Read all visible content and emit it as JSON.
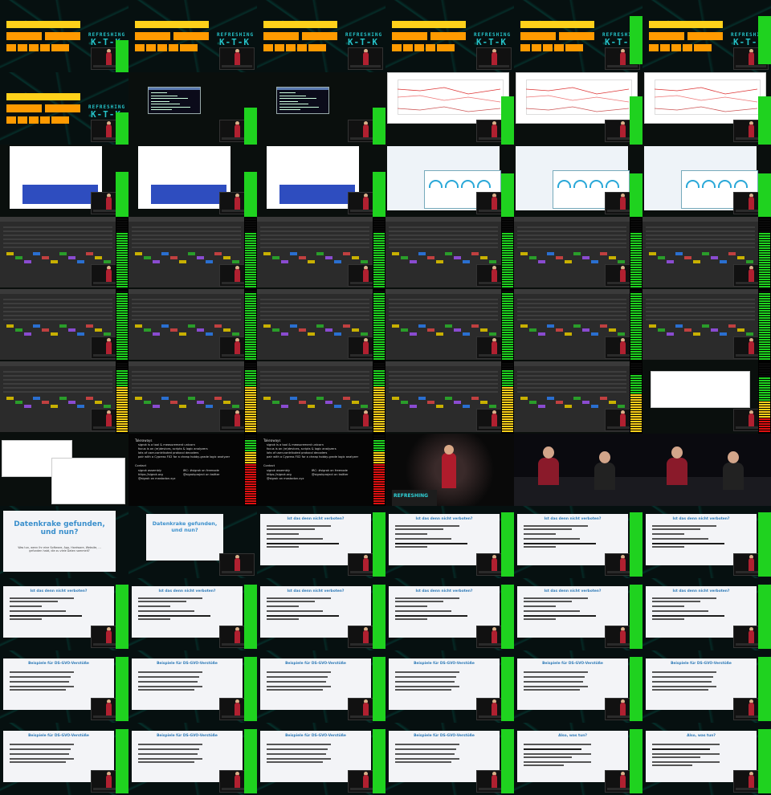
{
  "grid": {
    "columns": 6,
    "rows": 11,
    "thumb_count": 66
  },
  "logo": {
    "line1": "REFRESHING",
    "line2": "K-T-K",
    "line3": "MEMORIES"
  },
  "stage_banner": "REFRESHING",
  "text_slide": {
    "heading": "Takeaways",
    "lines": [
      "sigrok is a tool & measurement unicorn",
      "focus is on (re)devices, scripts & logic analyzers",
      "lots of user-contributed protocol decoders",
      "pair with a Cypress FX2 for a cheap hobby-grade logic analyzer"
    ],
    "contact_heading": "Contact",
    "contact": [
      "sigrok assembly",
      "https://sigrok.org",
      "@sigrok on mastodon.xyz"
    ],
    "irc": [
      "IRC: #sigrok on freenode",
      "@sigrokproject on twitter"
    ]
  },
  "slides": {
    "title_slide": {
      "title": "Datenkrake gefunden, und nun?",
      "subtitle": "Was tun, wenn Ihr eine Software, App, Hardware, Website, ... gefunden habt, die zu viele Daten sammelt?"
    },
    "verboten": {
      "title": "Ist das denn nicht verboten?"
    },
    "beispiele": {
      "title": "Beispiele für DS-GVO-Verstöße"
    },
    "also": {
      "title": "Also, was tun?"
    }
  },
  "colors": {
    "orange": "#ff9a00",
    "yellow": "#ffd11a",
    "green": "#1fd21f",
    "red": "#e01010",
    "title_blue": "#2f7bb8"
  }
}
